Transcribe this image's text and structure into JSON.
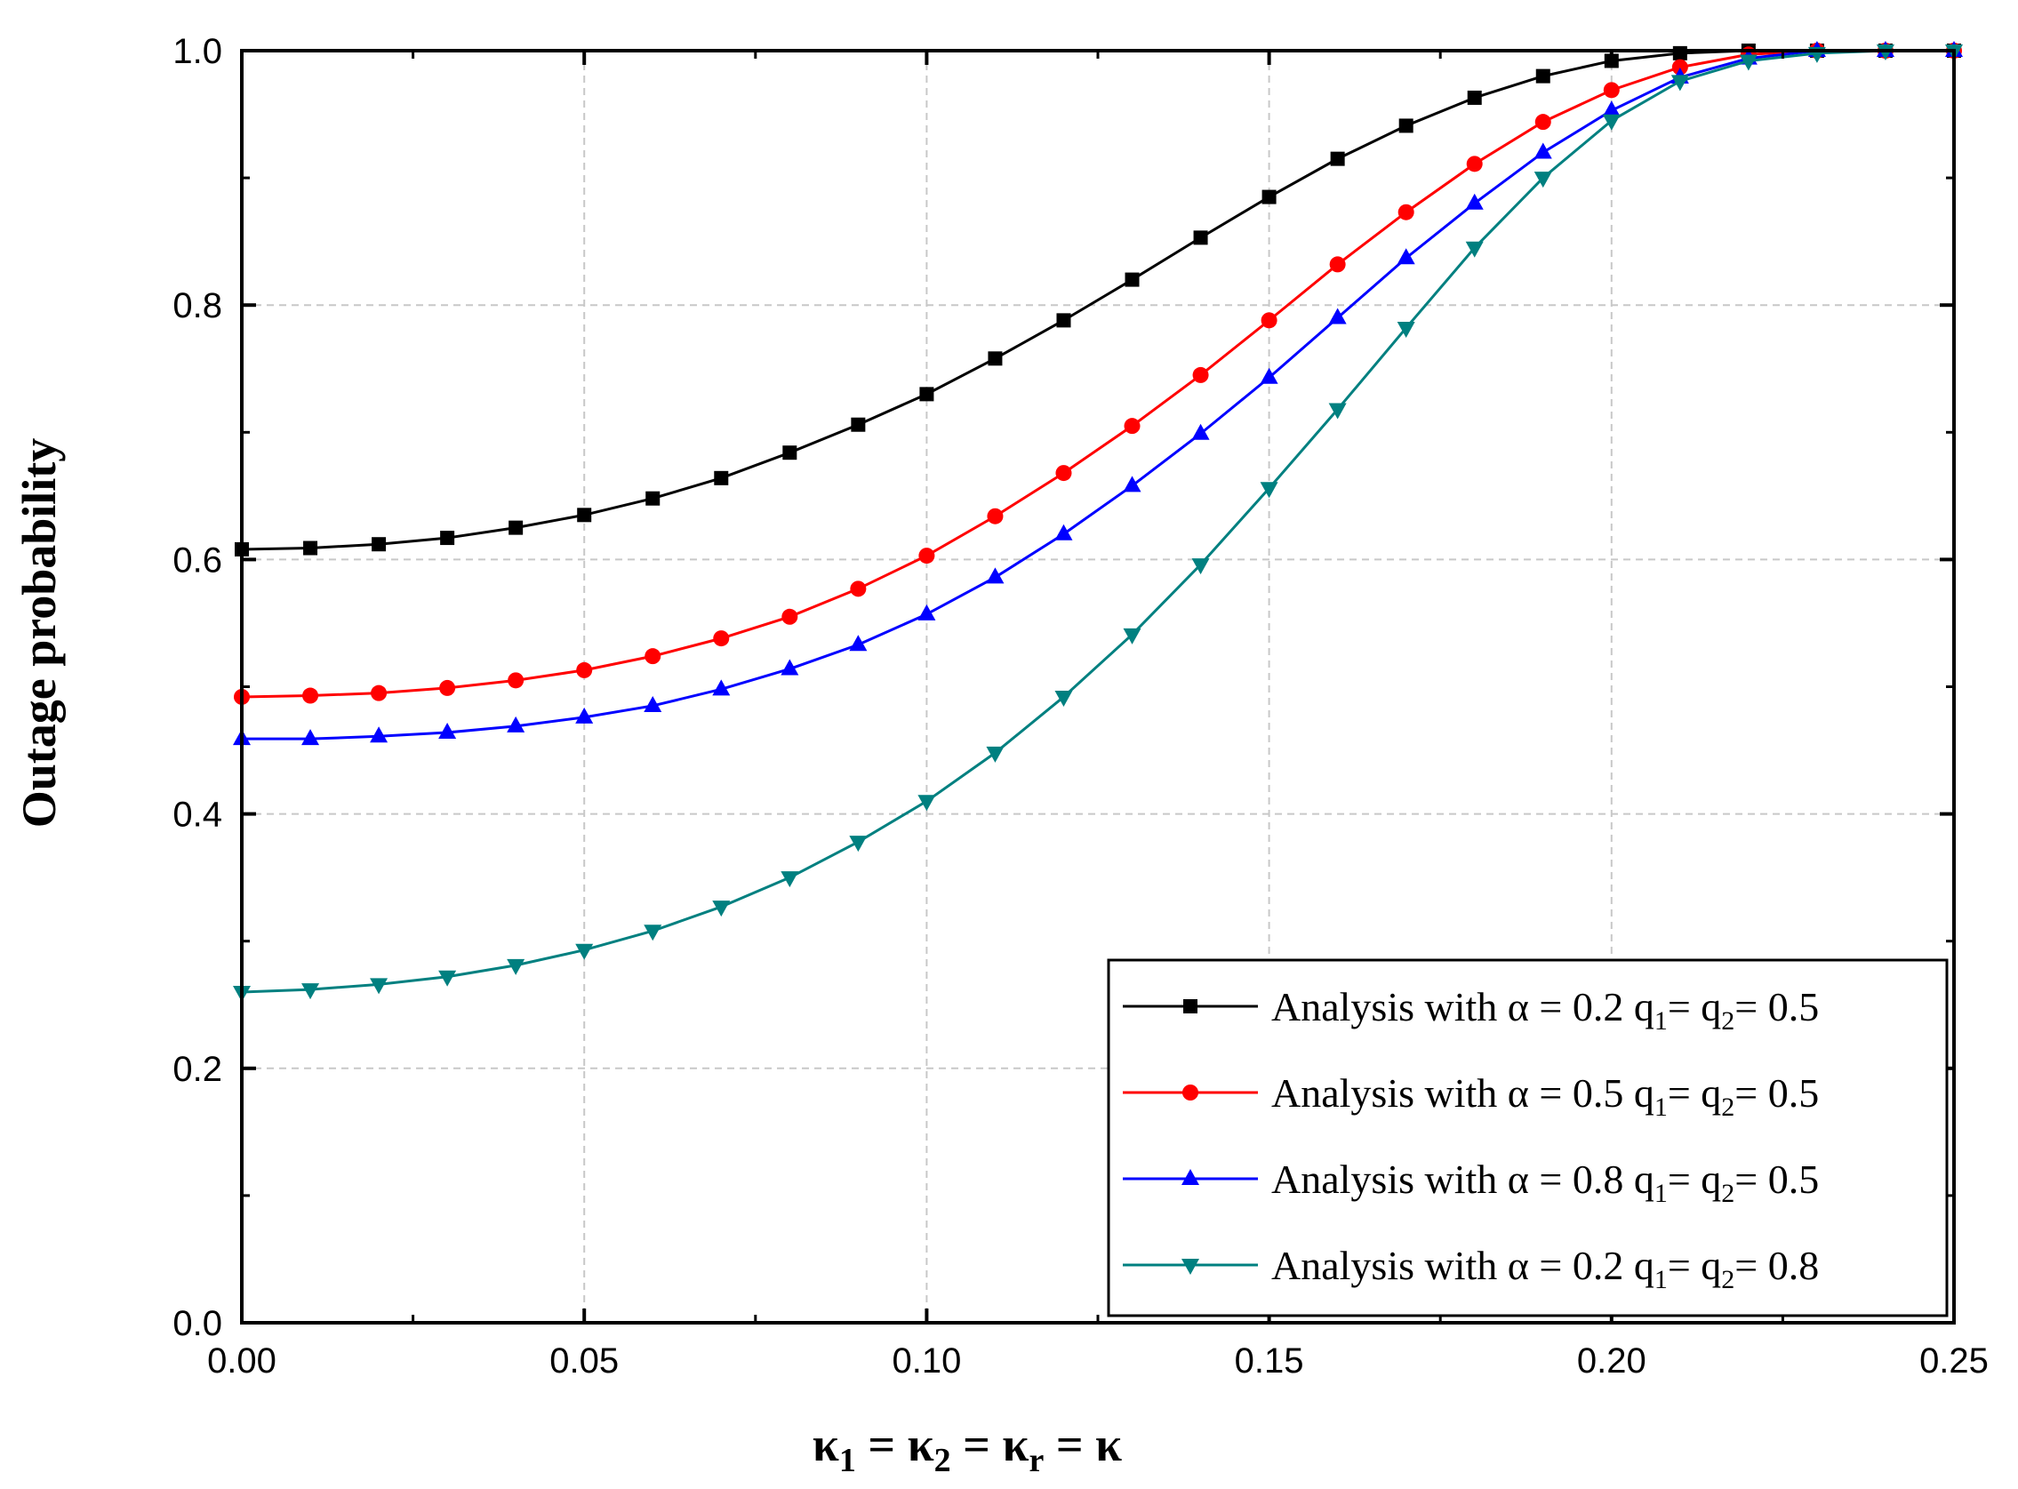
{
  "chart_data": {
    "type": "line",
    "title": "",
    "xlabel": {
      "k1": "κ",
      "s1": "1",
      "k2": "κ",
      "s2": "2",
      "kr": "κ",
      "sr": "r",
      "eq": "=",
      "k": "κ"
    },
    "ylabel": "Outage probability",
    "xlim": [
      0,
      0.25
    ],
    "ylim": [
      0,
      1.0
    ],
    "grid": true,
    "legend_position": "bottom-right",
    "x_ticks": [
      "0.00",
      "0.05",
      "0.10",
      "0.15",
      "0.20",
      "0.25"
    ],
    "y_ticks": [
      "0.0",
      "0.2",
      "0.4",
      "0.6",
      "0.8",
      "1.0"
    ],
    "x": [
      0,
      0.01,
      0.02,
      0.03,
      0.04,
      0.05,
      0.06,
      0.07,
      0.08,
      0.09,
      0.1,
      0.11,
      0.12,
      0.13,
      0.14,
      0.15,
      0.16,
      0.17,
      0.18,
      0.19,
      0.2,
      0.21,
      0.22,
      0.23,
      0.24,
      0.25
    ],
    "series": [
      {
        "name": "Analysis with α = 0.2 q1= q2= 0.5",
        "legend": {
          "prefix": "Analysis with α = 0.2 q",
          "sub1": "1",
          "mid": "= q",
          "sub2": "2",
          "suffix": "= 0.5"
        },
        "color": "#000000",
        "marker": "square",
        "values": [
          0.608,
          0.609,
          0.612,
          0.617,
          0.625,
          0.635,
          0.648,
          0.664,
          0.684,
          0.706,
          0.73,
          0.758,
          0.788,
          0.82,
          0.853,
          0.885,
          0.915,
          0.941,
          0.963,
          0.98,
          0.992,
          0.998,
          1.0,
          1.0,
          1.0,
          1.0
        ]
      },
      {
        "name": "Analysis with α = 0.5 q1= q2= 0.5",
        "legend": {
          "prefix": "Analysis with α = 0.5 q",
          "sub1": "1",
          "mid": "= q",
          "sub2": "2",
          "suffix": "= 0.5"
        },
        "color": "#ff0000",
        "marker": "circle",
        "values": [
          0.492,
          0.493,
          0.495,
          0.499,
          0.505,
          0.513,
          0.524,
          0.538,
          0.555,
          0.577,
          0.603,
          0.634,
          0.668,
          0.705,
          0.745,
          0.788,
          0.832,
          0.873,
          0.911,
          0.944,
          0.969,
          0.987,
          0.997,
          1.0,
          1.0,
          1.0
        ]
      },
      {
        "name": "Analysis with α = 0.8 q1= q2= 0.5",
        "legend": {
          "prefix": "Analysis with α = 0.8 q",
          "sub1": "1",
          "mid": "= q",
          "sub2": "2",
          "suffix": "= 0.5"
        },
        "color": "#0000ff",
        "marker": "triangle-up",
        "values": [
          0.459,
          0.459,
          0.461,
          0.464,
          0.469,
          0.476,
          0.485,
          0.498,
          0.514,
          0.533,
          0.557,
          0.586,
          0.62,
          0.658,
          0.699,
          0.743,
          0.79,
          0.837,
          0.88,
          0.92,
          0.953,
          0.979,
          0.994,
          1.0,
          1.0,
          1.0
        ]
      },
      {
        "name": "Analysis with α = 0.2 q1= q2= 0.8",
        "legend": {
          "prefix": "Analysis with α = 0.2 q",
          "sub1": "1",
          "mid": "= q",
          "sub2": "2",
          "suffix": "= 0.8"
        },
        "color": "#008080",
        "marker": "triangle-down",
        "values": [
          0.26,
          0.262,
          0.266,
          0.272,
          0.281,
          0.293,
          0.308,
          0.327,
          0.35,
          0.378,
          0.41,
          0.448,
          0.492,
          0.541,
          0.596,
          0.656,
          0.718,
          0.782,
          0.845,
          0.9,
          0.945,
          0.976,
          0.992,
          0.998,
          1.0,
          1.0
        ]
      }
    ]
  }
}
